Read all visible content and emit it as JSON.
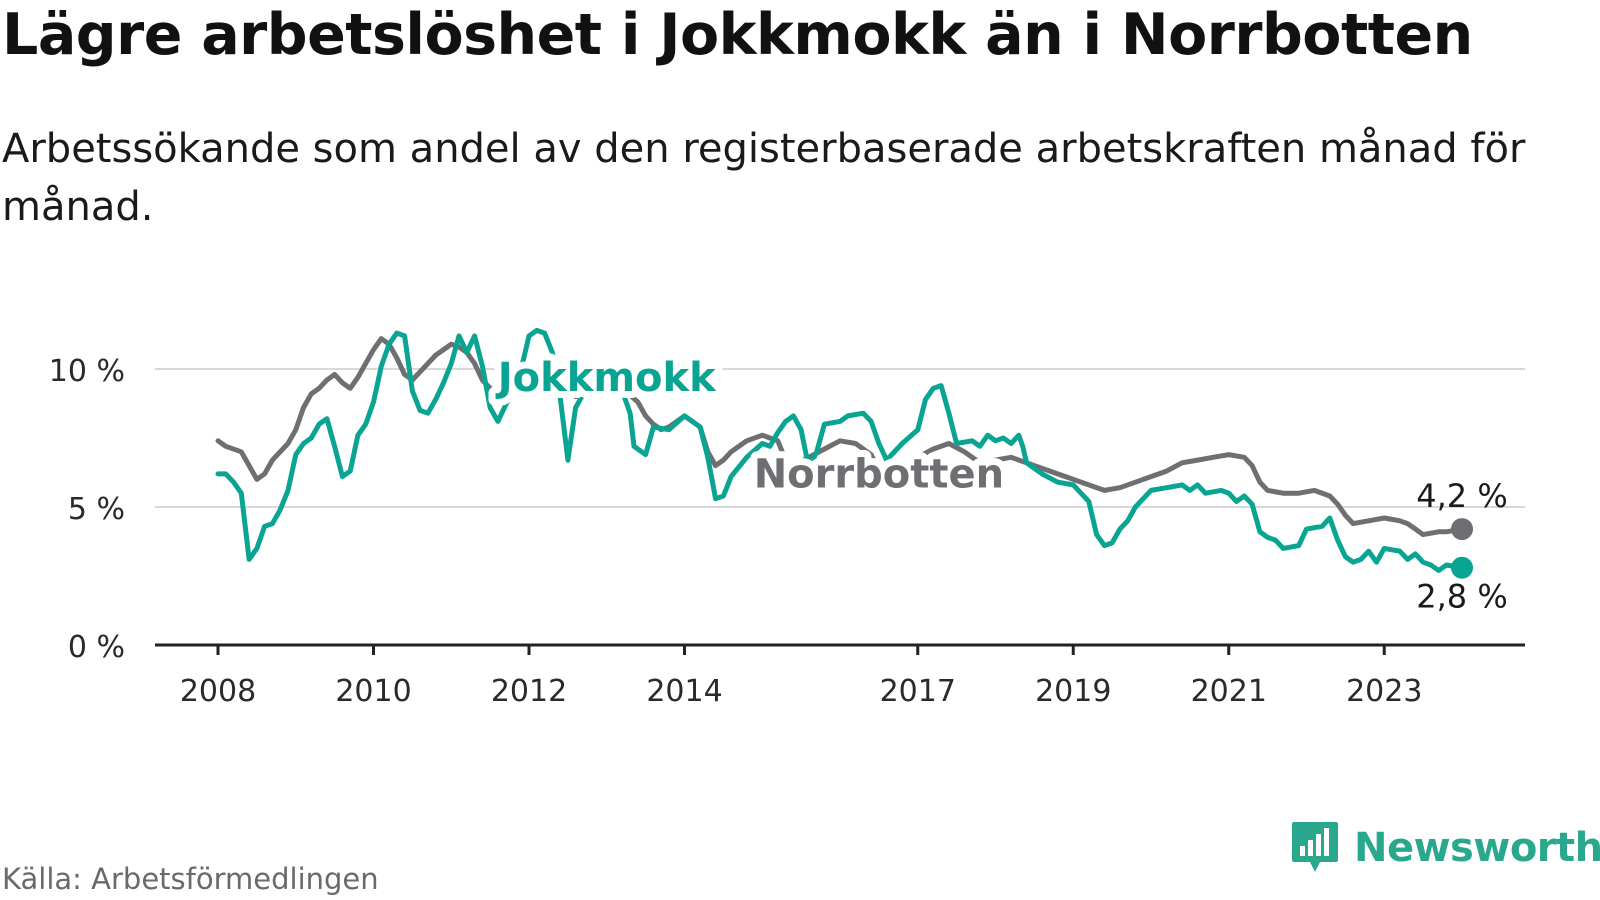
{
  "header": {
    "title": "Lägre arbetslöshet i Jokkmokk än i Norrbotten",
    "subtitle": "Arbetssökande som andel av den registerbaserade arbetskraften månad för månad."
  },
  "footer": {
    "source": "Källa: Arbetsförmedlingen",
    "brand": "Newsworthy"
  },
  "colors": {
    "jokkmokk": "#0aa493",
    "norrbotten": "#6f6f73",
    "grid": "#d9d9d9",
    "axis": "#222222",
    "brand": "#2aa88e"
  },
  "chart_data": {
    "type": "line",
    "title": "Lägre arbetslöshet i Jokkmokk än i Norrbotten",
    "xlabel": "",
    "ylabel": "",
    "xlim": [
      2008.0,
      2024.0
    ],
    "ylim": [
      0,
      11.5
    ],
    "grid": true,
    "x_ticks": [
      {
        "value": 2008,
        "label": "2008"
      },
      {
        "value": 2010,
        "label": "2010"
      },
      {
        "value": 2012,
        "label": "2012"
      },
      {
        "value": 2014,
        "label": "2014"
      },
      {
        "value": 2017,
        "label": "2017"
      },
      {
        "value": 2019,
        "label": "2019"
      },
      {
        "value": 2021,
        "label": "2021"
      },
      {
        "value": 2023,
        "label": "2023"
      }
    ],
    "y_ticks": [
      {
        "value": 0,
        "label": "0 %"
      },
      {
        "value": 5,
        "label": "5 %"
      },
      {
        "value": 10,
        "label": "10 %"
      }
    ],
    "series": [
      {
        "name": "Norrbotten",
        "color_key": "norrbotten",
        "end_label": "4,2 %",
        "end_label_side": "above",
        "label_anchor": [
          2016.5,
          5.7
        ],
        "points": [
          [
            2008.0,
            7.4
          ],
          [
            2008.1,
            7.2
          ],
          [
            2008.3,
            7.0
          ],
          [
            2008.4,
            6.5
          ],
          [
            2008.5,
            6.0
          ],
          [
            2008.6,
            6.2
          ],
          [
            2008.7,
            6.7
          ],
          [
            2008.9,
            7.3
          ],
          [
            2009.0,
            7.8
          ],
          [
            2009.1,
            8.6
          ],
          [
            2009.2,
            9.1
          ],
          [
            2009.3,
            9.3
          ],
          [
            2009.4,
            9.6
          ],
          [
            2009.5,
            9.8
          ],
          [
            2009.6,
            9.5
          ],
          [
            2009.7,
            9.3
          ],
          [
            2009.8,
            9.7
          ],
          [
            2009.9,
            10.2
          ],
          [
            2010.0,
            10.7
          ],
          [
            2010.1,
            11.1
          ],
          [
            2010.2,
            10.9
          ],
          [
            2010.3,
            10.4
          ],
          [
            2010.4,
            9.8
          ],
          [
            2010.5,
            9.6
          ],
          [
            2010.6,
            9.9
          ],
          [
            2010.7,
            10.2
          ],
          [
            2010.8,
            10.5
          ],
          [
            2010.9,
            10.7
          ],
          [
            2011.0,
            10.9
          ],
          [
            2011.1,
            10.8
          ],
          [
            2011.2,
            10.6
          ],
          [
            2011.3,
            10.2
          ],
          [
            2011.4,
            9.6
          ],
          [
            2011.5,
            9.3
          ],
          [
            2011.6,
            9.2
          ],
          [
            2011.7,
            9.4
          ],
          [
            2011.8,
            9.6
          ],
          [
            2011.9,
            9.8
          ],
          [
            2012.0,
            10.0
          ],
          [
            2012.1,
            10.1
          ],
          [
            2012.2,
            9.9
          ],
          [
            2012.3,
            9.8
          ],
          [
            2012.4,
            9.6
          ],
          [
            2012.5,
            9.2
          ],
          [
            2012.6,
            9.0
          ],
          [
            2012.7,
            9.1
          ],
          [
            2012.8,
            9.2
          ],
          [
            2012.9,
            9.3
          ],
          [
            2013.0,
            9.4
          ],
          [
            2013.2,
            9.3
          ],
          [
            2013.4,
            8.8
          ],
          [
            2013.5,
            8.3
          ],
          [
            2013.6,
            8.0
          ],
          [
            2013.7,
            7.8
          ],
          [
            2013.8,
            7.9
          ],
          [
            2014.0,
            8.3
          ],
          [
            2014.2,
            7.9
          ],
          [
            2014.3,
            7.0
          ],
          [
            2014.4,
            6.5
          ],
          [
            2014.5,
            6.7
          ],
          [
            2014.6,
            7.0
          ],
          [
            2014.8,
            7.4
          ],
          [
            2015.0,
            7.6
          ],
          [
            2015.1,
            7.5
          ],
          [
            2015.2,
            7.4
          ],
          [
            2015.3,
            6.7
          ],
          [
            2015.4,
            6.5
          ],
          [
            2015.6,
            6.8
          ],
          [
            2015.8,
            7.1
          ],
          [
            2016.0,
            7.4
          ],
          [
            2016.2,
            7.3
          ],
          [
            2016.4,
            6.9
          ],
          [
            2016.5,
            6.3
          ],
          [
            2016.6,
            6.2
          ],
          [
            2016.8,
            6.5
          ],
          [
            2017.0,
            6.8
          ],
          [
            2017.2,
            7.1
          ],
          [
            2017.4,
            7.3
          ],
          [
            2017.6,
            7.0
          ],
          [
            2017.8,
            6.6
          ],
          [
            2018.0,
            6.7
          ],
          [
            2018.2,
            6.8
          ],
          [
            2018.4,
            6.6
          ],
          [
            2018.6,
            6.4
          ],
          [
            2018.8,
            6.2
          ],
          [
            2019.0,
            6.0
          ],
          [
            2019.2,
            5.8
          ],
          [
            2019.4,
            5.6
          ],
          [
            2019.6,
            5.7
          ],
          [
            2019.8,
            5.9
          ],
          [
            2020.0,
            6.1
          ],
          [
            2020.2,
            6.3
          ],
          [
            2020.4,
            6.6
          ],
          [
            2020.6,
            6.7
          ],
          [
            2020.8,
            6.8
          ],
          [
            2021.0,
            6.9
          ],
          [
            2021.2,
            6.8
          ],
          [
            2021.3,
            6.5
          ],
          [
            2021.4,
            5.9
          ],
          [
            2021.5,
            5.6
          ],
          [
            2021.7,
            5.5
          ],
          [
            2021.9,
            5.5
          ],
          [
            2022.1,
            5.6
          ],
          [
            2022.3,
            5.4
          ],
          [
            2022.4,
            5.1
          ],
          [
            2022.5,
            4.7
          ],
          [
            2022.6,
            4.4
          ],
          [
            2022.8,
            4.5
          ],
          [
            2023.0,
            4.6
          ],
          [
            2023.2,
            4.5
          ],
          [
            2023.3,
            4.4
          ],
          [
            2023.4,
            4.2
          ],
          [
            2023.5,
            4.0
          ],
          [
            2023.7,
            4.1
          ],
          [
            2023.8,
            4.1
          ],
          [
            2024.0,
            4.2
          ]
        ]
      },
      {
        "name": "Jokkmokk",
        "color_key": "jokkmokk",
        "end_label": "2,8 %",
        "end_label_side": "below",
        "label_anchor": [
          2013.0,
          9.2
        ],
        "points": [
          [
            2008.0,
            6.2
          ],
          [
            2008.1,
            6.2
          ],
          [
            2008.2,
            5.9
          ],
          [
            2008.3,
            5.5
          ],
          [
            2008.35,
            4.3
          ],
          [
            2008.4,
            3.1
          ],
          [
            2008.5,
            3.5
          ],
          [
            2008.6,
            4.3
          ],
          [
            2008.7,
            4.4
          ],
          [
            2008.8,
            4.9
          ],
          [
            2008.9,
            5.6
          ],
          [
            2009.0,
            6.9
          ],
          [
            2009.1,
            7.3
          ],
          [
            2009.2,
            7.5
          ],
          [
            2009.3,
            8.0
          ],
          [
            2009.4,
            8.2
          ],
          [
            2009.5,
            7.2
          ],
          [
            2009.6,
            6.1
          ],
          [
            2009.7,
            6.3
          ],
          [
            2009.8,
            7.6
          ],
          [
            2009.9,
            8.0
          ],
          [
            2010.0,
            8.8
          ],
          [
            2010.1,
            10.1
          ],
          [
            2010.2,
            10.9
          ],
          [
            2010.3,
            11.3
          ],
          [
            2010.4,
            11.2
          ],
          [
            2010.5,
            9.2
          ],
          [
            2010.6,
            8.5
          ],
          [
            2010.7,
            8.4
          ],
          [
            2010.8,
            8.9
          ],
          [
            2010.9,
            9.5
          ],
          [
            2011.0,
            10.2
          ],
          [
            2011.1,
            11.2
          ],
          [
            2011.2,
            10.6
          ],
          [
            2011.3,
            11.2
          ],
          [
            2011.4,
            10.1
          ],
          [
            2011.5,
            8.6
          ],
          [
            2011.6,
            8.1
          ],
          [
            2011.7,
            8.7
          ],
          [
            2011.8,
            9.2
          ],
          [
            2011.9,
            10.0
          ],
          [
            2012.0,
            11.2
          ],
          [
            2012.1,
            11.4
          ],
          [
            2012.2,
            11.3
          ],
          [
            2012.3,
            10.6
          ],
          [
            2012.4,
            9.0
          ],
          [
            2012.5,
            6.7
          ],
          [
            2012.6,
            8.6
          ],
          [
            2012.7,
            9.1
          ],
          [
            2012.8,
            9.5
          ],
          [
            2012.9,
            10.0
          ],
          [
            2013.0,
            10.1
          ],
          [
            2013.1,
            9.6
          ],
          [
            2013.2,
            9.2
          ],
          [
            2013.3,
            8.4
          ],
          [
            2013.35,
            7.2
          ],
          [
            2013.5,
            6.9
          ],
          [
            2013.6,
            7.9
          ],
          [
            2013.8,
            7.8
          ],
          [
            2014.0,
            8.3
          ],
          [
            2014.2,
            7.9
          ],
          [
            2014.3,
            6.8
          ],
          [
            2014.4,
            5.3
          ],
          [
            2014.5,
            5.4
          ],
          [
            2014.6,
            6.1
          ],
          [
            2014.8,
            6.8
          ],
          [
            2015.0,
            7.3
          ],
          [
            2015.1,
            7.2
          ],
          [
            2015.2,
            7.7
          ],
          [
            2015.3,
            8.1
          ],
          [
            2015.4,
            8.3
          ],
          [
            2015.5,
            7.8
          ],
          [
            2015.6,
            6.4
          ],
          [
            2015.7,
            7.0
          ],
          [
            2015.8,
            8.0
          ],
          [
            2016.0,
            8.1
          ],
          [
            2016.1,
            8.3
          ],
          [
            2016.3,
            8.4
          ],
          [
            2016.4,
            8.1
          ],
          [
            2016.5,
            7.3
          ],
          [
            2016.6,
            6.7
          ],
          [
            2016.8,
            7.3
          ],
          [
            2017.0,
            7.8
          ],
          [
            2017.1,
            8.9
          ],
          [
            2017.2,
            9.3
          ],
          [
            2017.3,
            9.4
          ],
          [
            2017.4,
            8.4
          ],
          [
            2017.5,
            7.3
          ],
          [
            2017.7,
            7.4
          ],
          [
            2017.8,
            7.2
          ],
          [
            2017.9,
            7.6
          ],
          [
            2018.0,
            7.4
          ],
          [
            2018.1,
            7.5
          ],
          [
            2018.2,
            7.3
          ],
          [
            2018.3,
            7.6
          ],
          [
            2018.35,
            7.2
          ],
          [
            2018.4,
            6.6
          ],
          [
            2018.6,
            6.2
          ],
          [
            2018.8,
            5.9
          ],
          [
            2019.0,
            5.8
          ],
          [
            2019.1,
            5.5
          ],
          [
            2019.2,
            5.2
          ],
          [
            2019.3,
            4.0
          ],
          [
            2019.4,
            3.6
          ],
          [
            2019.5,
            3.7
          ],
          [
            2019.6,
            4.2
          ],
          [
            2019.7,
            4.5
          ],
          [
            2019.8,
            5.0
          ],
          [
            2019.9,
            5.3
          ],
          [
            2020.0,
            5.6
          ],
          [
            2020.2,
            5.7
          ],
          [
            2020.4,
            5.8
          ],
          [
            2020.5,
            5.6
          ],
          [
            2020.6,
            5.8
          ],
          [
            2020.7,
            5.5
          ],
          [
            2020.9,
            5.6
          ],
          [
            2021.0,
            5.5
          ],
          [
            2021.1,
            5.2
          ],
          [
            2021.2,
            5.4
          ],
          [
            2021.3,
            5.1
          ],
          [
            2021.4,
            4.1
          ],
          [
            2021.5,
            3.9
          ],
          [
            2021.6,
            3.8
          ],
          [
            2021.7,
            3.5
          ],
          [
            2021.9,
            3.6
          ],
          [
            2022.0,
            4.2
          ],
          [
            2022.2,
            4.3
          ],
          [
            2022.3,
            4.6
          ],
          [
            2022.4,
            3.8
          ],
          [
            2022.5,
            3.2
          ],
          [
            2022.6,
            3.0
          ],
          [
            2022.7,
            3.1
          ],
          [
            2022.8,
            3.4
          ],
          [
            2022.9,
            3.0
          ],
          [
            2023.0,
            3.5
          ],
          [
            2023.2,
            3.4
          ],
          [
            2023.3,
            3.1
          ],
          [
            2023.4,
            3.3
          ],
          [
            2023.5,
            3.0
          ],
          [
            2023.6,
            2.9
          ],
          [
            2023.7,
            2.7
          ],
          [
            2023.8,
            2.9
          ],
          [
            2024.0,
            2.8
          ]
        ]
      }
    ]
  }
}
